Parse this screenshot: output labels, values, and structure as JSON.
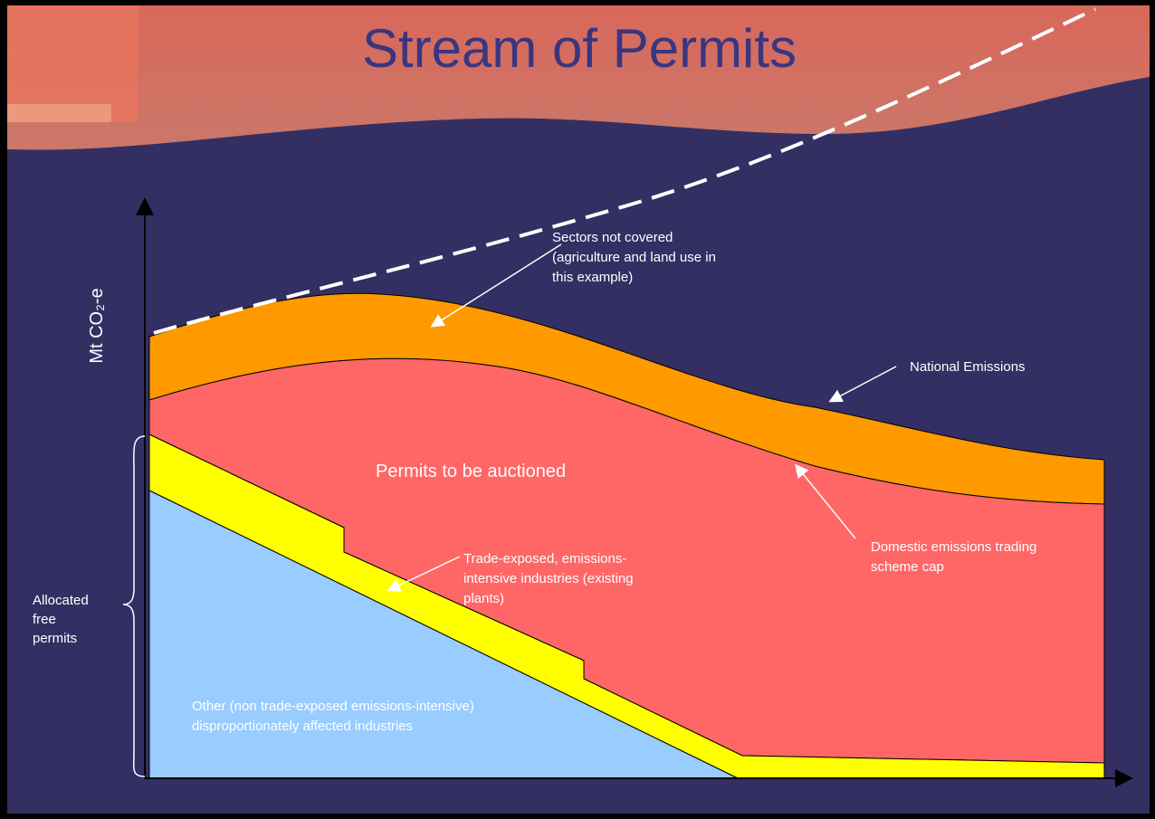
{
  "header": {
    "title": "Stream of Permits"
  },
  "axis": {
    "y_label": "Mt CO₂-e"
  },
  "labels": {
    "sectors_not_covered": [
      "Sectors not covered",
      "(agriculture and land use in",
      "this example)"
    ],
    "national_emissions": [
      "National Emissions"
    ],
    "permits_auctioned": [
      "Permits to be auctioned"
    ],
    "scheme_cap": [
      "Domestic emissions trading",
      "scheme cap"
    ],
    "trade_exposed": [
      "Trade-exposed, emissions-",
      "intensive industries (existing",
      "plants)"
    ],
    "allocated_free": [
      "Allocated",
      "free",
      "permits"
    ],
    "other_industries": [
      "Other (non trade-exposed emissions-intensive)",
      "disproportionately affected industries"
    ]
  }
}
